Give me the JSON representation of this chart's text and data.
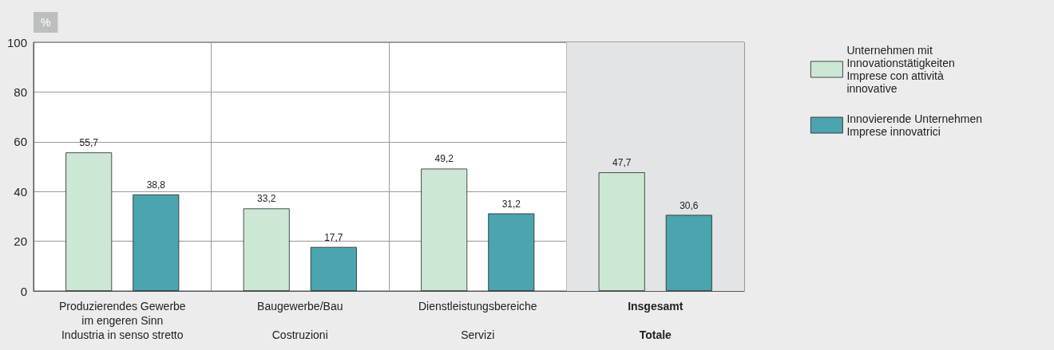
{
  "chart_data": {
    "type": "bar",
    "ylabel": "%",
    "categories": [
      "Produzierendes Gewerbe\nim engeren Sinn\nIndustria in senso stretto",
      "Baugewerbe/Bau\nCostruzioni",
      "Dienstleistungsbereiche\nServizi",
      "Insgesamt\nTotale"
    ],
    "series": [
      {
        "name": "Unternehmen mit Innovationstätigkeiten Imprese con attività innovative",
        "color": "#cce8d5",
        "values": [
          55.7,
          33.2,
          49.2,
          47.7
        ],
        "value_labels": [
          "55,7",
          "33,2",
          "49,2",
          "47,7"
        ]
      },
      {
        "name": "Innovierende Unternehmen Imprese innovatrici",
        "color": "#4aa5ae",
        "values": [
          38.8,
          17.7,
          31.2,
          30.6
        ],
        "value_labels": [
          "38,8",
          "17,7",
          "31,2",
          "30,6"
        ]
      }
    ],
    "ylim": [
      0,
      100
    ],
    "yticks": [
      0,
      20,
      40,
      60,
      80,
      100
    ],
    "grid": true,
    "legend": "right",
    "bands": [
      {
        "axis": "x",
        "from": "Insgesamt\nTotale",
        "to": "Insgesamt\nTotale",
        "color": "#e3e4e6"
      }
    ]
  }
}
